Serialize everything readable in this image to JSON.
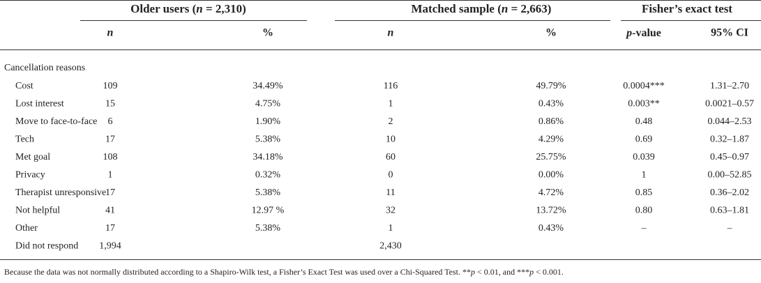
{
  "header": {
    "groups": [
      [
        "Older users (",
        "n",
        " = 2,310)"
      ],
      [
        "Matched sample (",
        "n",
        " = 2,663)"
      ],
      [
        "Fisher’s exact test"
      ]
    ],
    "columns": [
      [
        "n"
      ],
      [
        "%"
      ],
      [
        "n"
      ],
      [
        "%"
      ],
      [
        "p",
        "-value"
      ],
      [
        "95% CI"
      ]
    ]
  },
  "table": {
    "section": "Cancellation reasons",
    "rows": [
      [
        "Cost",
        "109",
        "34.49%",
        "116",
        "49.79%",
        "0.0004***",
        "1.31–2.70"
      ],
      [
        "Lost interest",
        "15",
        "4.75%",
        "1",
        "0.43%",
        "0.003**",
        "0.0021–0.57"
      ],
      [
        "Move to face-to-face",
        "6",
        "1.90%",
        "2",
        "0.86%",
        "0.48",
        "0.044–2.53"
      ],
      [
        "Tech",
        "17",
        "5.38%",
        "10",
        "4.29%",
        "0.69",
        "0.32–1.87"
      ],
      [
        "Met goal",
        "108",
        "34.18%",
        "60",
        "25.75%",
        "0.039",
        "0.45–0.97"
      ],
      [
        "Privacy",
        "1",
        "0.32%",
        "0",
        "0.00%",
        "1",
        "0.00–52.85"
      ],
      [
        "Therapist unresponsive",
        "17",
        "5.38%",
        "11",
        "4.72%",
        "0.85",
        "0.36–2.02"
      ],
      [
        "Not helpful",
        "41",
        "12.97 %",
        "32",
        "13.72%",
        "0.80",
        "0.63–1.81"
      ],
      [
        "Other",
        "17",
        "5.38%",
        "1",
        "0.43%",
        "–",
        "–"
      ],
      [
        "Did not respond",
        "1,994",
        null,
        "2,430",
        null,
        null,
        null
      ]
    ]
  },
  "footnote": [
    "Because the data was not normally distributed according to a Shapiro-Wilk test, a Fisher’s Exact Test was used over a Chi-Squared Test. **",
    "p",
    " < 0.01, and ***",
    "p",
    " < 0.001."
  ]
}
